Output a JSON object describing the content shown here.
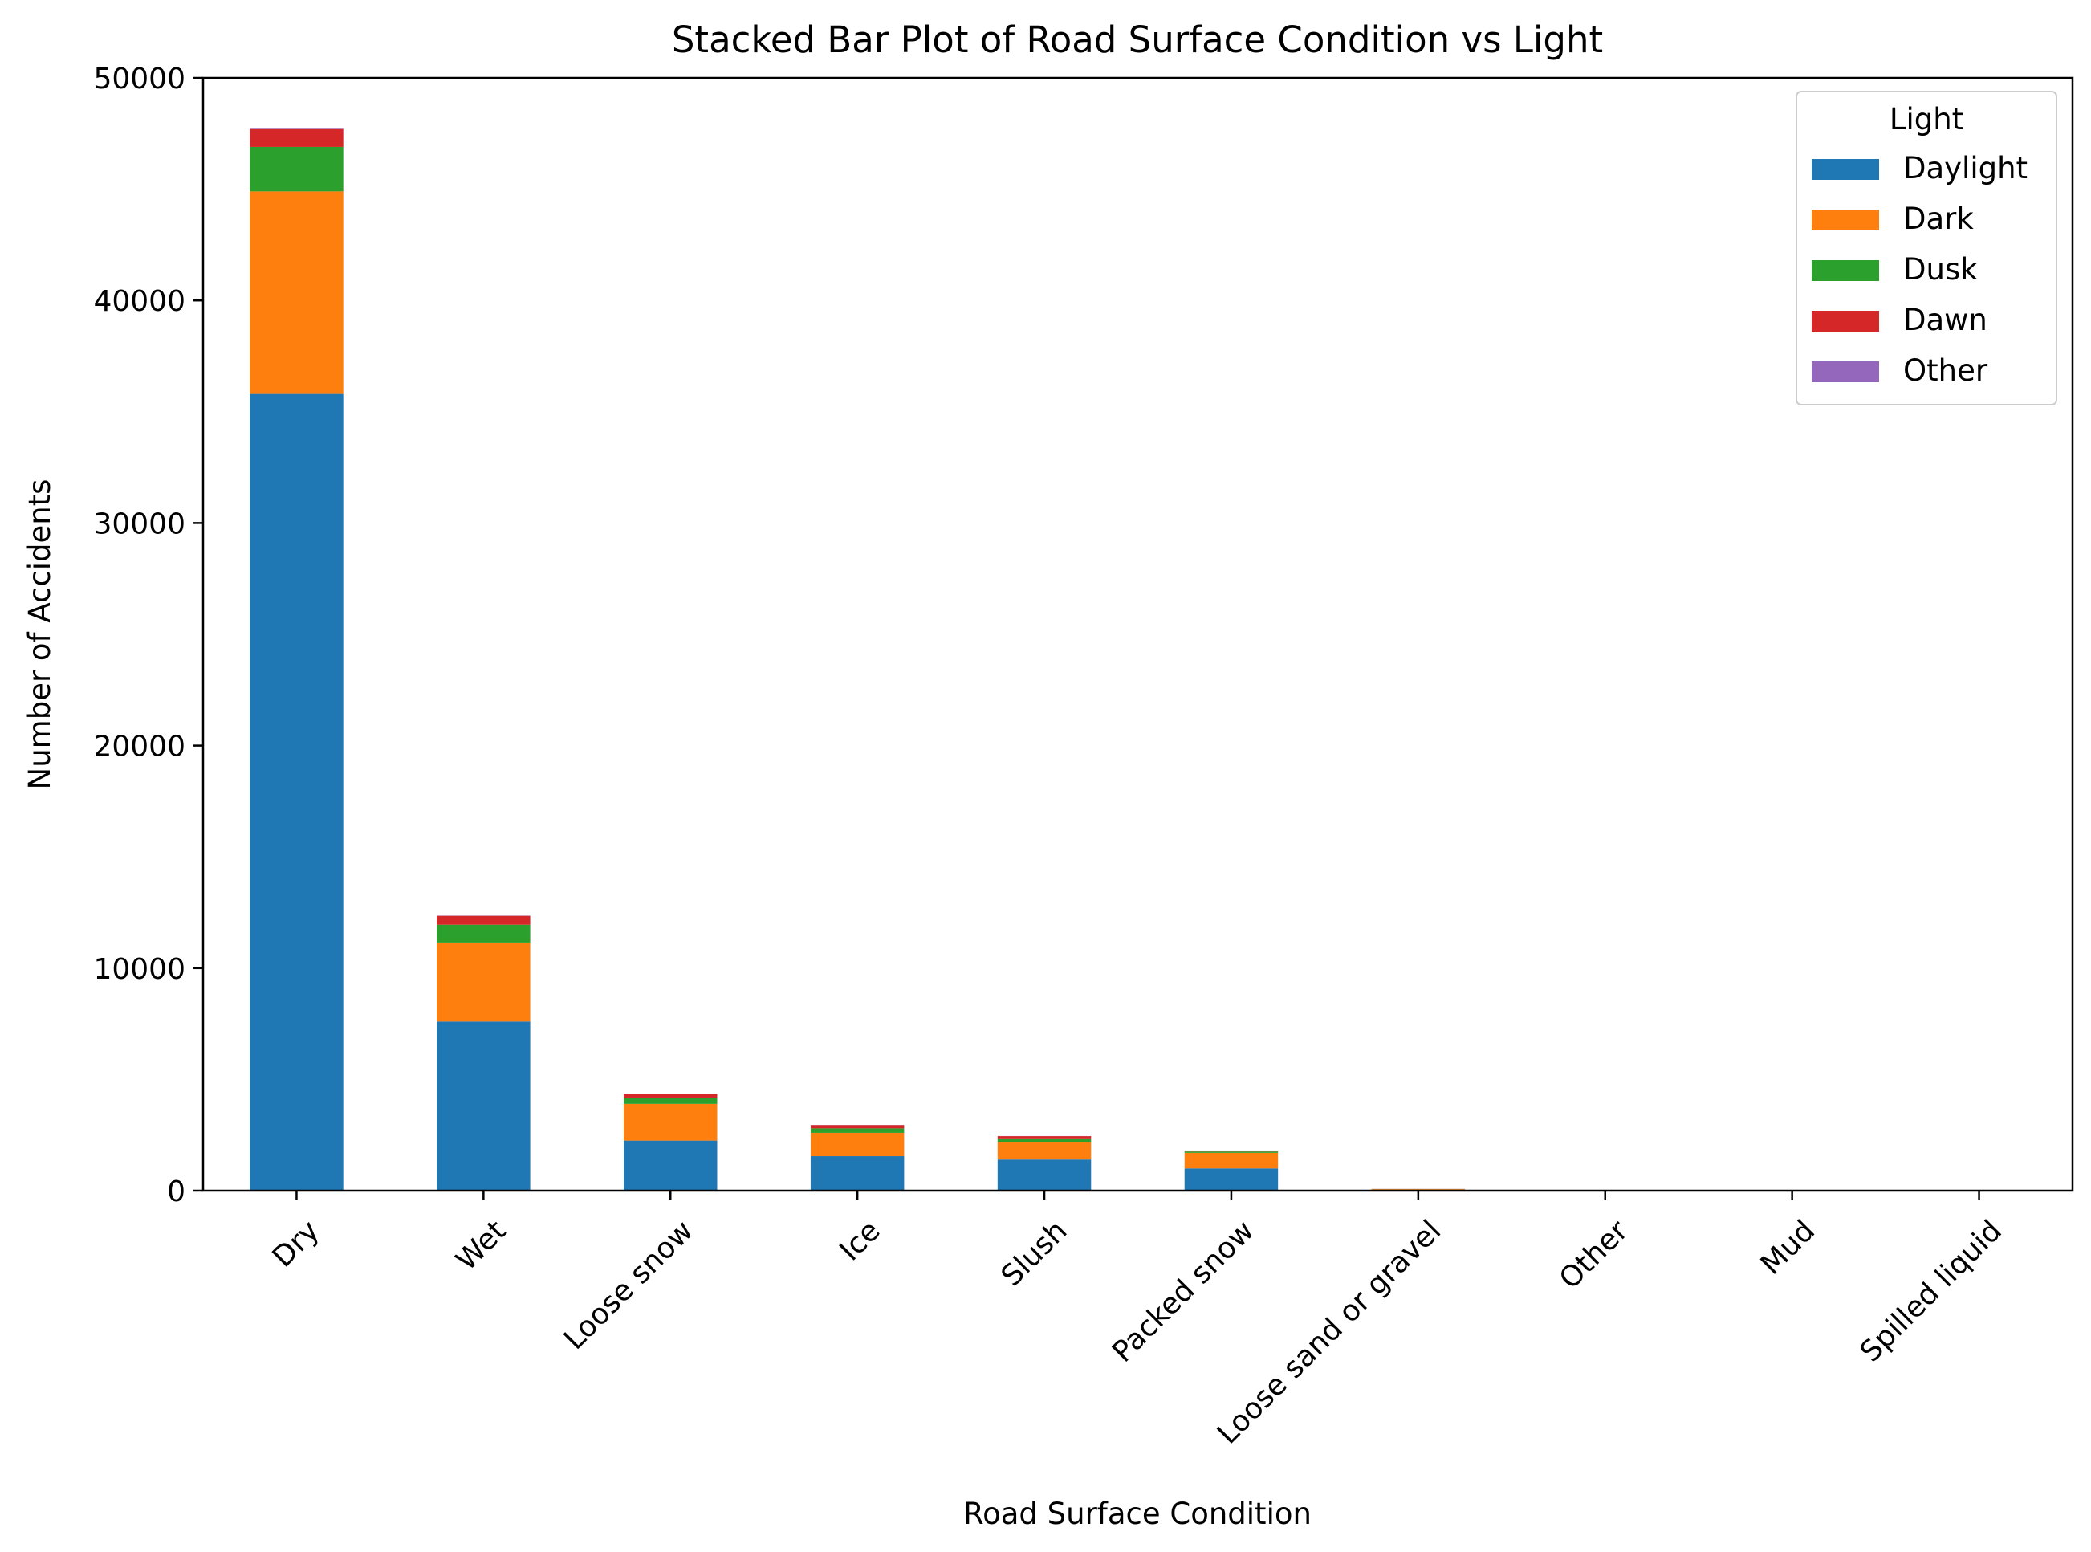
{
  "chart_data": {
    "type": "bar",
    "stacked": true,
    "title": "Stacked Bar Plot of Road Surface Condition vs Light",
    "xlabel": "Road Surface Condition",
    "ylabel": "Number of Accidents",
    "ylim": [
      0,
      50000
    ],
    "yticks": [
      0,
      10000,
      20000,
      30000,
      40000,
      50000
    ],
    "grid": false,
    "categories": [
      "Dry",
      "Wet",
      "Loose snow",
      "Ice",
      "Slush",
      "Packed snow",
      "Loose sand or gravel",
      "Other",
      "Mud",
      "Spilled liquid"
    ],
    "series": [
      {
        "name": "Daylight",
        "color": "#1f77b4",
        "values": [
          35800,
          7600,
          2250,
          1550,
          1400,
          1000,
          40,
          10,
          5,
          3
        ]
      },
      {
        "name": "Dark",
        "color": "#ff7f0e",
        "values": [
          9100,
          3550,
          1650,
          1050,
          800,
          700,
          30,
          8,
          4,
          2
        ]
      },
      {
        "name": "Dusk",
        "color": "#2ca02c",
        "values": [
          2000,
          800,
          250,
          200,
          150,
          60,
          5,
          2,
          1,
          1
        ]
      },
      {
        "name": "Dawn",
        "color": "#d62728",
        "values": [
          800,
          400,
          200,
          150,
          100,
          40,
          3,
          1,
          1,
          0
        ]
      },
      {
        "name": "Other",
        "color": "#9467bd",
        "values": [
          20,
          10,
          5,
          5,
          5,
          5,
          1,
          0,
          0,
          0
        ]
      }
    ],
    "legend": {
      "title": "Light",
      "placement": "top-right"
    }
  }
}
